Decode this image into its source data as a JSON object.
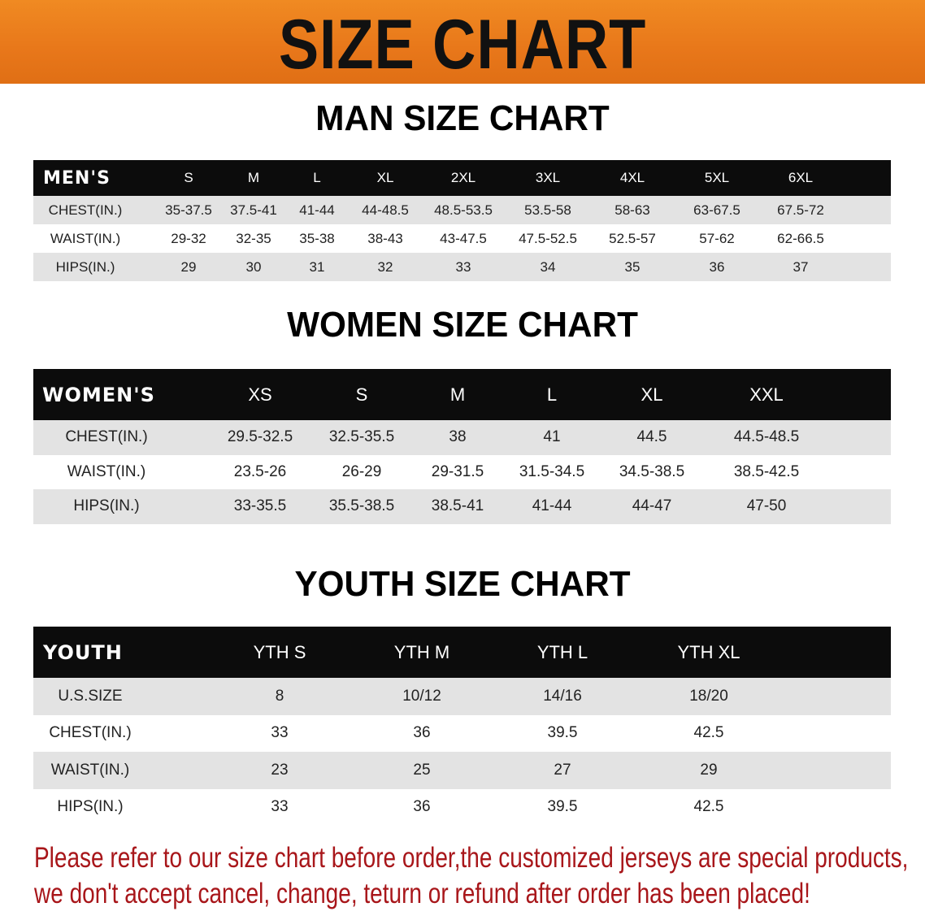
{
  "title": "SIZE CHART",
  "colors": {
    "banner": "#e8771a",
    "header_row": "#0c0c0c",
    "shaded_row": "#e3e3e3",
    "note_text": "#a8161a"
  },
  "men": {
    "title": "MAN SIZE CHART",
    "header": [
      "MEN'S",
      "S",
      "M",
      "L",
      "XL",
      "2XL",
      "3XL",
      "4XL",
      "5XL",
      "6XL"
    ],
    "rows": [
      [
        "CHEST(IN.)",
        "35-37.5",
        "37.5-41",
        "41-44",
        "44-48.5",
        "48.5-53.5",
        "53.5-58",
        "58-63",
        "63-67.5",
        "67.5-72"
      ],
      [
        "WAIST(IN.)",
        "29-32",
        "32-35",
        "35-38",
        "38-43",
        "43-47.5",
        "47.5-52.5",
        "52.5-57",
        "57-62",
        "62-66.5"
      ],
      [
        "HIPS(IN.)",
        "29",
        "30",
        "31",
        "32",
        "33",
        "34",
        "35",
        "36",
        "37"
      ]
    ]
  },
  "women": {
    "title": "WOMEN SIZE CHART",
    "header": [
      "WOMEN'S",
      "XS",
      "S",
      "M",
      "L",
      "XL",
      "XXL"
    ],
    "rows": [
      [
        "CHEST(IN.)",
        "29.5-32.5",
        "32.5-35.5",
        "38",
        "41",
        "44.5",
        "44.5-48.5"
      ],
      [
        "WAIST(IN.)",
        "23.5-26",
        "26-29",
        "29-31.5",
        "31.5-34.5",
        "34.5-38.5",
        "38.5-42.5"
      ],
      [
        "HIPS(IN.)",
        "33-35.5",
        "35.5-38.5",
        "38.5-41",
        "41-44",
        "44-47",
        "47-50"
      ]
    ]
  },
  "youth": {
    "title": "YOUTH SIZE CHART",
    "header": [
      "YOUTH",
      "YTH S",
      "YTH M",
      "YTH L",
      "YTH XL"
    ],
    "rows": [
      [
        "U.S.SIZE",
        "8",
        "10/12",
        "14/16",
        "18/20"
      ],
      [
        "CHEST(IN.)",
        "33",
        "36",
        "39.5",
        "42.5"
      ],
      [
        "WAIST(IN.)",
        "23",
        "25",
        "27",
        "29"
      ],
      [
        "HIPS(IN.)",
        "33",
        "36",
        "39.5",
        "42.5"
      ]
    ]
  },
  "note": {
    "line1": "Please refer to our size chart before order,the customized jerseys are special products,",
    "line2": "we don't accept cancel, change, teturn or refund after order has been placed!"
  }
}
